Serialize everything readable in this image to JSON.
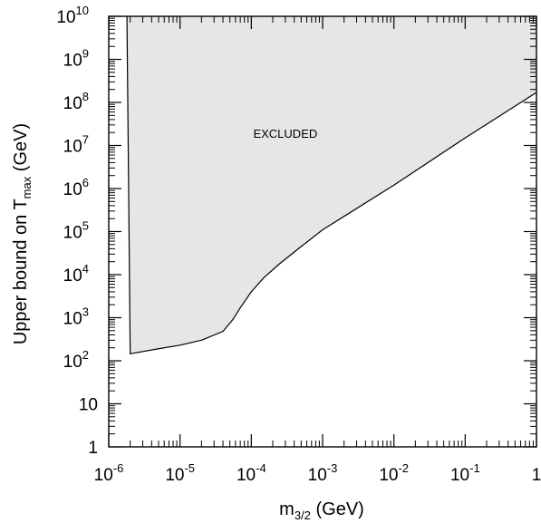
{
  "chart_data": {
    "type": "area",
    "title": "",
    "xlabel": {
      "main": "m",
      "sub": "3/2",
      "suffix": " (GeV)"
    },
    "ylabel": {
      "prefix": "Upper bound on T",
      "sub": "max",
      "suffix": " (GeV)"
    },
    "xscale": "log",
    "yscale": "log",
    "xlim": [
      1e-06,
      1
    ],
    "ylim": [
      1,
      10000000000.0
    ],
    "x_ticks": [
      {
        "base": "10",
        "exp": "-6"
      },
      {
        "base": "10",
        "exp": "-5"
      },
      {
        "base": "10",
        "exp": "-4"
      },
      {
        "base": "10",
        "exp": "-3"
      },
      {
        "base": "10",
        "exp": "-2"
      },
      {
        "base": "10",
        "exp": "-1"
      },
      {
        "base": "1",
        "exp": ""
      }
    ],
    "y_ticks": [
      {
        "base": "1",
        "exp": ""
      },
      {
        "base": "10",
        "exp": ""
      },
      {
        "base": "10",
        "exp": "2"
      },
      {
        "base": "10",
        "exp": "3"
      },
      {
        "base": "10",
        "exp": "4"
      },
      {
        "base": "10",
        "exp": "5"
      },
      {
        "base": "10",
        "exp": "6"
      },
      {
        "base": "10",
        "exp": "7"
      },
      {
        "base": "10",
        "exp": "8"
      },
      {
        "base": "10",
        "exp": "9"
      },
      {
        "base": "10",
        "exp": "10"
      }
    ],
    "grid": false,
    "series": [
      {
        "region": "excluded",
        "fill": "#e6e6e6",
        "boundary": [
          {
            "x": 1.8e-06,
            "y": 10000000000.0
          },
          {
            "x": 1.9e-06,
            "y": 1000000.0
          },
          {
            "x": 2e-06,
            "y": 145.0
          },
          {
            "x": 5e-06,
            "y": 190.0
          },
          {
            "x": 1e-05,
            "y": 230.0
          },
          {
            "x": 2e-05,
            "y": 300.0
          },
          {
            "x": 4e-05,
            "y": 480.0
          },
          {
            "x": 5.5e-05,
            "y": 900.0
          },
          {
            "x": 7e-05,
            "y": 1700.0
          },
          {
            "x": 0.0001,
            "y": 4000.0
          },
          {
            "x": 0.00015,
            "y": 8500.0
          },
          {
            "x": 0.00025,
            "y": 18000.0
          },
          {
            "x": 0.0005,
            "y": 45000.0
          },
          {
            "x": 0.001,
            "y": 110000.0
          },
          {
            "x": 0.01,
            "y": 1200000.0
          },
          {
            "x": 0.1,
            "y": 15000000.0
          },
          {
            "x": 1,
            "y": 170000000.0
          }
        ]
      }
    ],
    "annotations": [
      {
        "text": "EXCLUDED",
        "x": 0.0003,
        "y": 15000000.0
      }
    ]
  }
}
